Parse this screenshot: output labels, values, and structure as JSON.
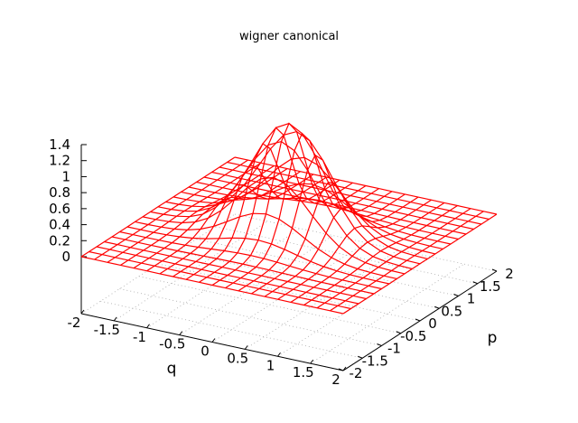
{
  "chart_data": {
    "type": "surface3d",
    "title": "wigner canonical",
    "xlabel": "q",
    "ylabel": "p",
    "zlabel": "",
    "xlim": [
      -2,
      2
    ],
    "ylim": [
      -2,
      2
    ],
    "zlim": [
      0,
      1.4
    ],
    "x_ticks": [
      "-2",
      "-1.5",
      "-1",
      "-0.5",
      "0",
      "0.5",
      "1",
      "1.5",
      "2"
    ],
    "y_ticks": [
      "-2",
      "-1.5",
      "-1",
      "-0.5",
      "0",
      "0.5",
      "1",
      "1.5",
      "2"
    ],
    "z_ticks": [
      "0",
      "0.2",
      "0.4",
      "0.6",
      "0.8",
      "1",
      "1.2",
      "1.4"
    ],
    "grid": true,
    "grid_points": 21,
    "surface_color": "#ff0000",
    "surface": {
      "function": "gaussian",
      "peak": 1.4,
      "center_q": 0,
      "center_p": 0,
      "sigma_q": 0.55,
      "sigma_p": 0.4
    }
  }
}
